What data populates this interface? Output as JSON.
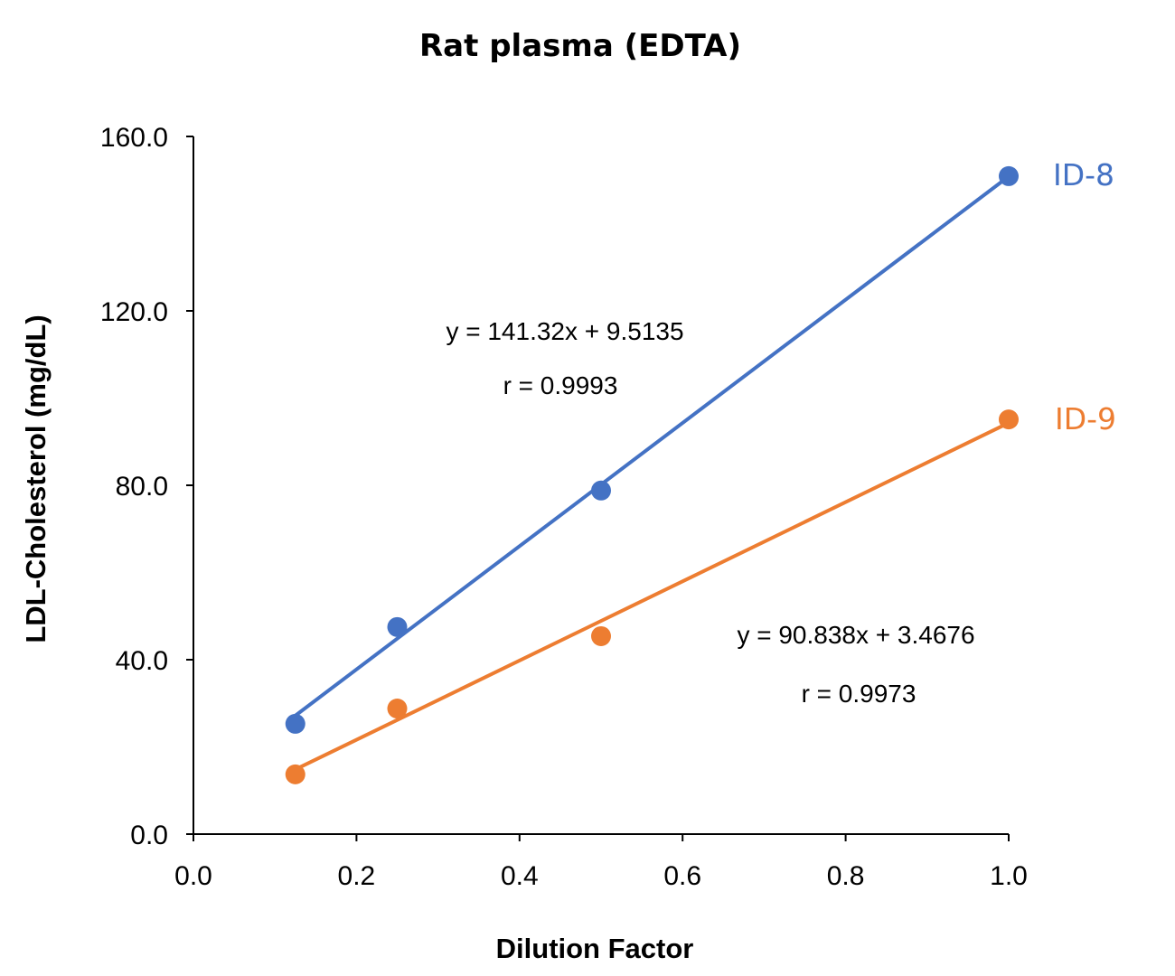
{
  "chart_data": {
    "type": "scatter",
    "title": "Rat plasma (EDTA)",
    "xlabel": "Dilution Factor",
    "ylabel": "LDL-Cholesterol (mg/dL)",
    "xlim": [
      0,
      1.0
    ],
    "ylim": [
      0,
      160
    ],
    "xticks": [
      "0.0",
      "0.2",
      "0.4",
      "0.6",
      "0.8",
      "1.0"
    ],
    "yticks": [
      "0.0",
      "40.0",
      "80.0",
      "120.0",
      "160.0"
    ],
    "grid": false,
    "series": [
      {
        "name": "ID-8",
        "color": "#4472C4",
        "x": [
          0.125,
          0.25,
          0.5,
          1.0
        ],
        "y": [
          25.3,
          47.5,
          78.8,
          150.9
        ],
        "trendline": {
          "slope": 141.32,
          "intercept": 9.5135
        },
        "equation": "y = 141.32x + 9.5135",
        "r": "r = 0.9993"
      },
      {
        "name": "ID-9",
        "color": "#ED7D31",
        "x": [
          0.125,
          0.25,
          0.5,
          1.0
        ],
        "y": [
          13.7,
          28.8,
          45.4,
          95.1
        ],
        "trendline": {
          "slope": 90.838,
          "intercept": 3.4676
        },
        "equation": "y = 90.838x + 3.4676",
        "r": "r = 0.9973"
      }
    ]
  }
}
